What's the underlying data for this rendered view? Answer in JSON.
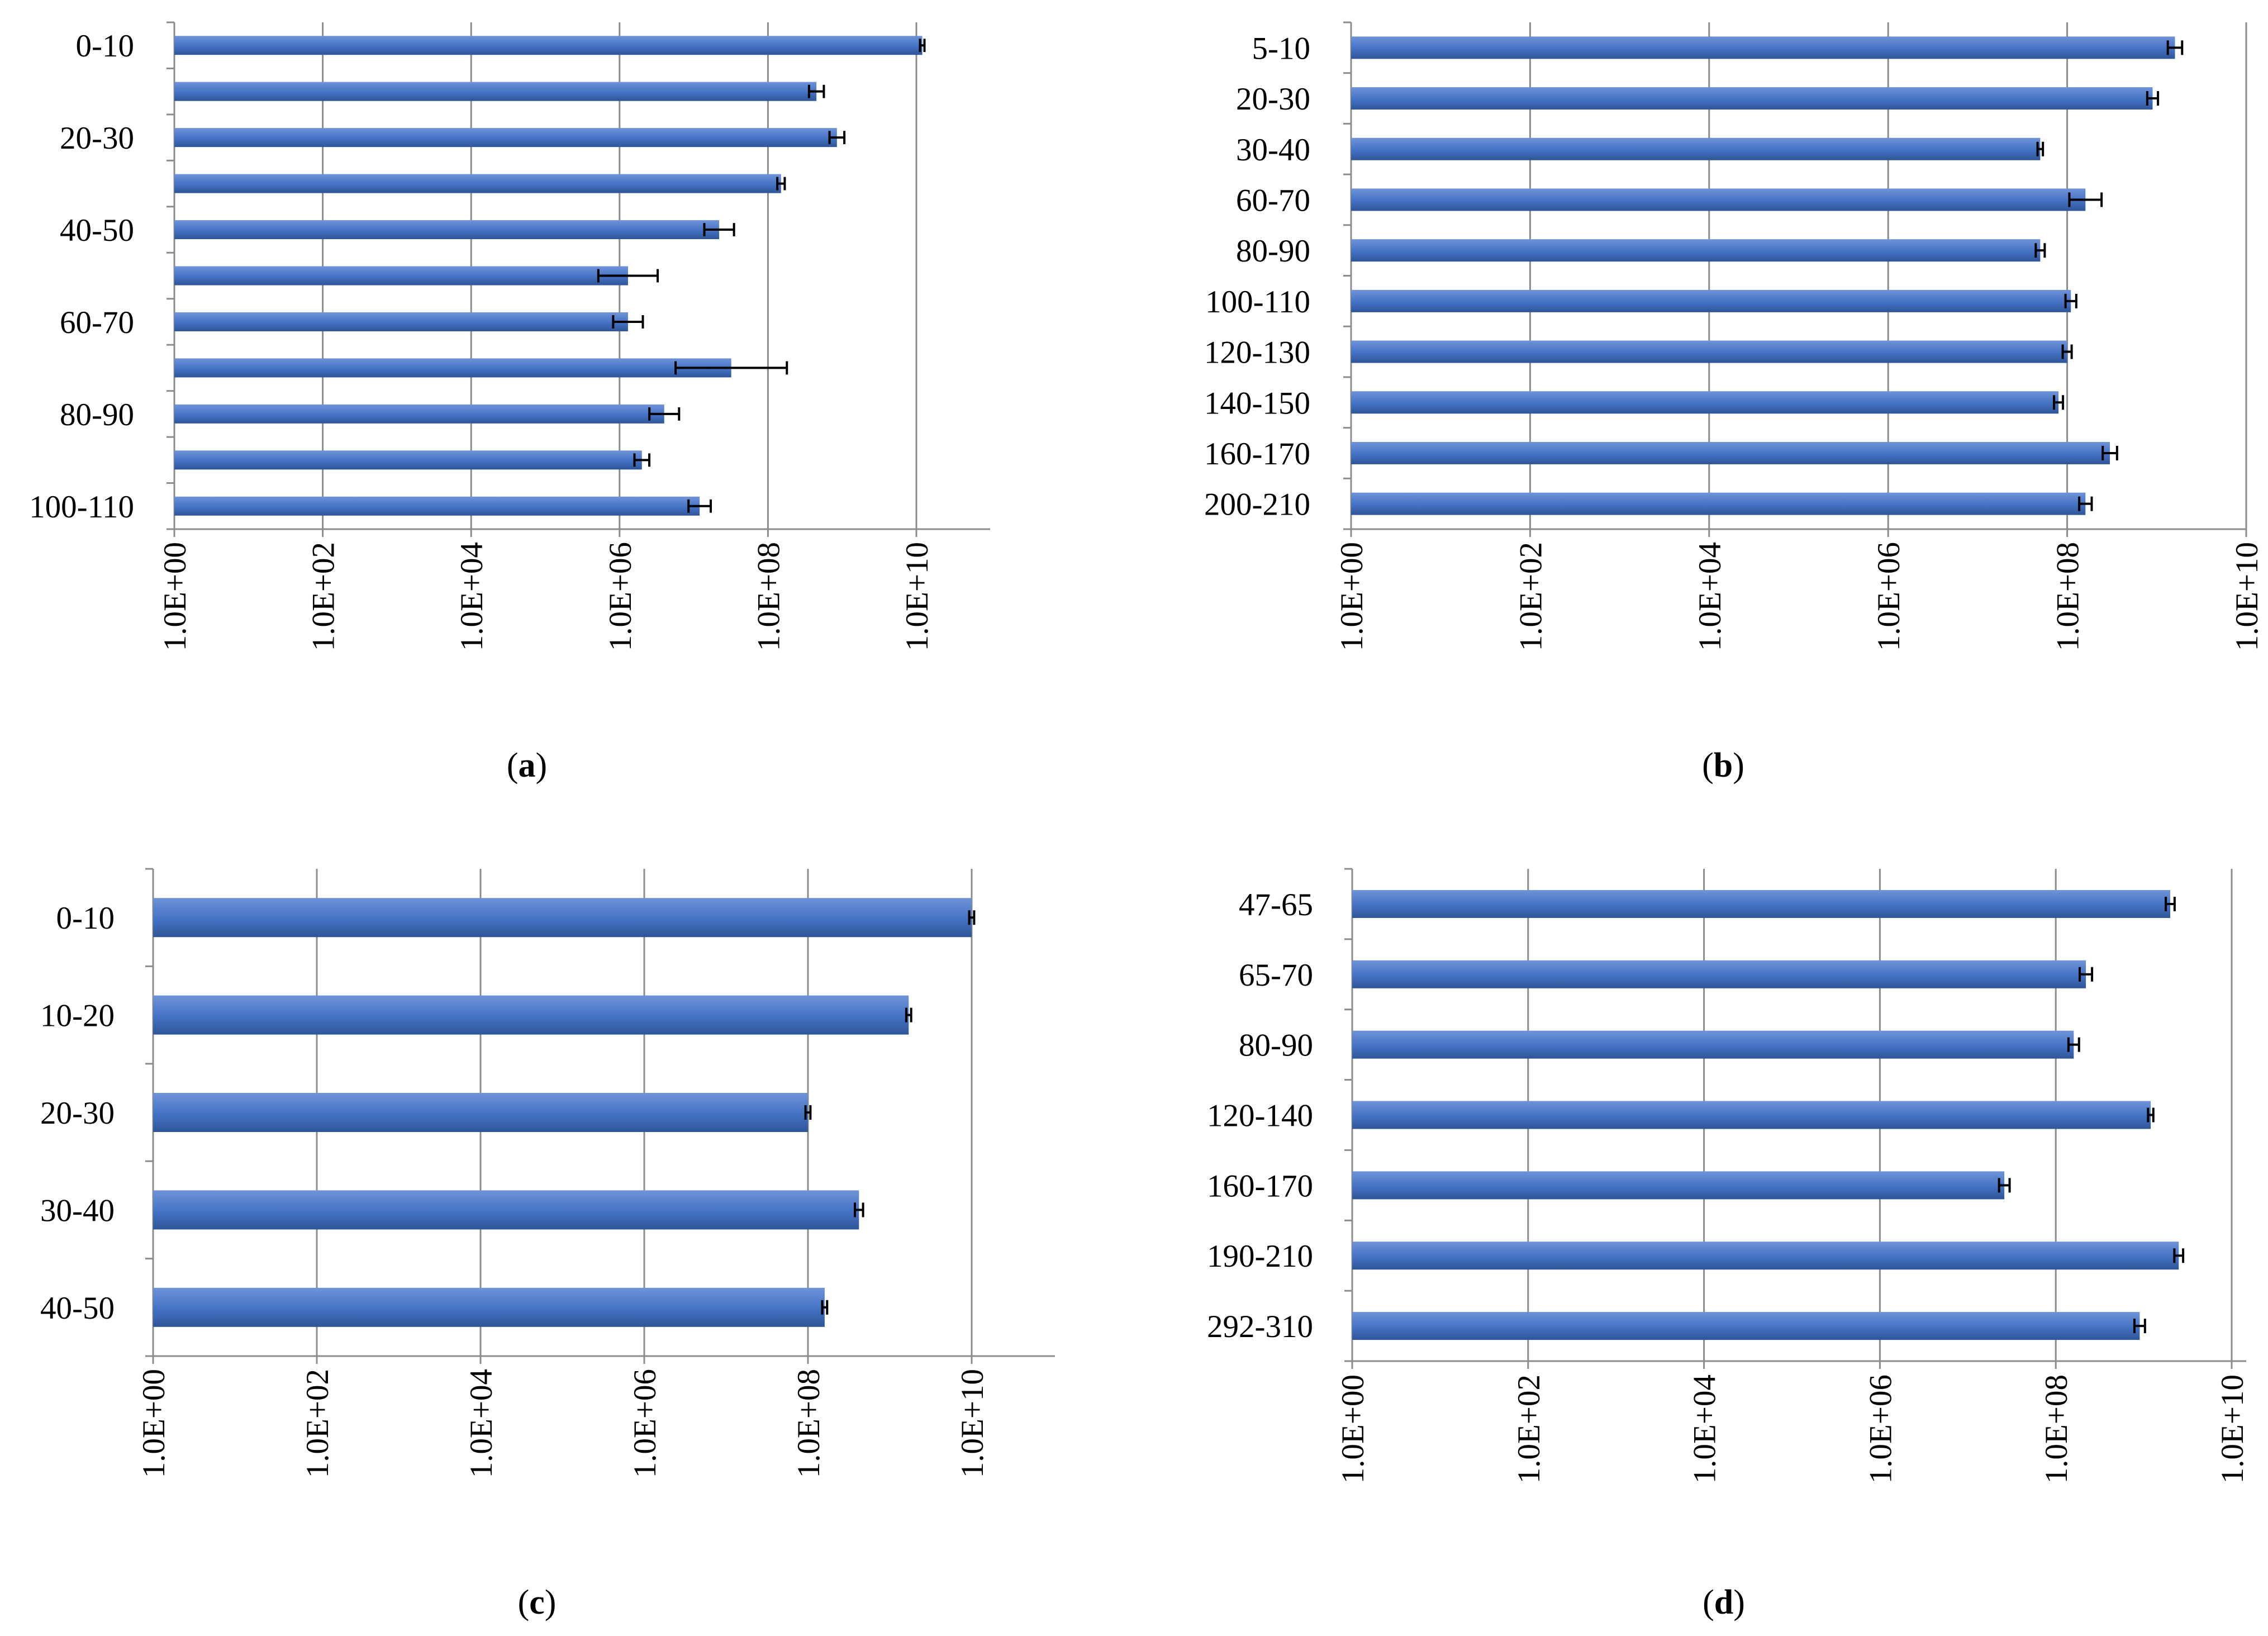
{
  "colors": {
    "bar": "#4472C4",
    "bar_dark": "#2F5597",
    "bar_light": "#6F93D8",
    "grid": "#8c8c8c",
    "axis": "#8c8c8c",
    "error": "#000000"
  },
  "chart_data": [
    {
      "type": "bar",
      "orientation": "horizontal",
      "panel": "a",
      "caption_letter": "a",
      "scale": "log10",
      "xlim_exponent": [
        0,
        11
      ],
      "xticks_exponent": [
        0,
        2,
        4,
        6,
        8,
        10
      ],
      "xtick_labels": [
        "1.0E+00",
        "1.0E+02",
        "1.0E+04",
        "1.0E+06",
        "1.0E+08",
        "1.0E+10"
      ],
      "categories": [
        "0-10",
        "",
        "20-30",
        "",
        "40-50",
        "",
        "60-70",
        "",
        "80-90",
        "",
        "100-110"
      ],
      "values": [
        12000000000.0,
        450000000.0,
        850000000.0,
        150000000.0,
        22000000.0,
        1300000.0,
        1300000.0,
        32000000.0,
        4000000.0,
        2000000.0,
        12000000.0
      ],
      "errors_exp": [
        0.03,
        0.1,
        0.1,
        0.05,
        0.2,
        0.4,
        0.2,
        0.75,
        0.2,
        0.1,
        0.15
      ]
    },
    {
      "type": "bar",
      "orientation": "horizontal",
      "panel": "b",
      "caption_letter": "b",
      "scale": "log10",
      "xlim_exponent": [
        0,
        10
      ],
      "xticks_exponent": [
        0,
        2,
        4,
        6,
        8,
        10
      ],
      "xtick_labels": [
        "1.0E+00",
        "1.0E+02",
        "1.0E+04",
        "1.0E+06",
        "1.0E+08",
        "1.0E+10"
      ],
      "categories": [
        "5-10",
        "20-30",
        "30-40",
        "60-70",
        "80-90",
        "100-110",
        "120-130",
        "140-150",
        "160-170",
        "200-210"
      ],
      "values": [
        1600000000.0,
        900000000.0,
        50000000.0,
        160000000.0,
        50000000.0,
        110000000.0,
        100000000.0,
        80000000.0,
        300000000.0,
        160000000.0
      ],
      "errors_exp": [
        0.08,
        0.06,
        0.03,
        0.18,
        0.05,
        0.06,
        0.05,
        0.05,
        0.08,
        0.07
      ]
    },
    {
      "type": "bar",
      "orientation": "horizontal",
      "panel": "c",
      "caption_letter": "c",
      "scale": "log10",
      "xlim_exponent": [
        0,
        11
      ],
      "xticks_exponent": [
        0,
        2,
        4,
        6,
        8,
        10
      ],
      "xtick_labels": [
        "1.0E+00",
        "1.0E+02",
        "1.0E+04",
        "1.0E+06",
        "1.0E+08",
        "1.0E+10"
      ],
      "categories": [
        "0-10",
        "10-20",
        "20-30",
        "30-40",
        "40-50"
      ],
      "values": [
        10000000000.0,
        1700000000.0,
        100000000.0,
        420000000.0,
        160000000.0
      ],
      "errors_exp": [
        0.03,
        0.03,
        0.03,
        0.05,
        0.03
      ]
    },
    {
      "type": "bar",
      "orientation": "horizontal",
      "panel": "d",
      "caption_letter": "d",
      "scale": "log10",
      "xlim_exponent": [
        0,
        10
      ],
      "xticks_exponent": [
        0,
        2,
        4,
        6,
        8,
        10
      ],
      "xtick_labels": [
        "1.0E+00",
        "1.0E+02",
        "1.0E+04",
        "1.0E+06",
        "1.0E+08",
        "1.0E+10"
      ],
      "categories": [
        "47-65",
        "65-70",
        "80-90",
        "120-140",
        "160-170",
        "190-210",
        "292-310"
      ],
      "values": [
        2000000000.0,
        220000000.0,
        160000000.0,
        1200000000.0,
        26000000.0,
        2500000000.0,
        900000000.0
      ],
      "errors_exp": [
        0.05,
        0.07,
        0.06,
        0.03,
        0.06,
        0.05,
        0.06
      ]
    }
  ]
}
